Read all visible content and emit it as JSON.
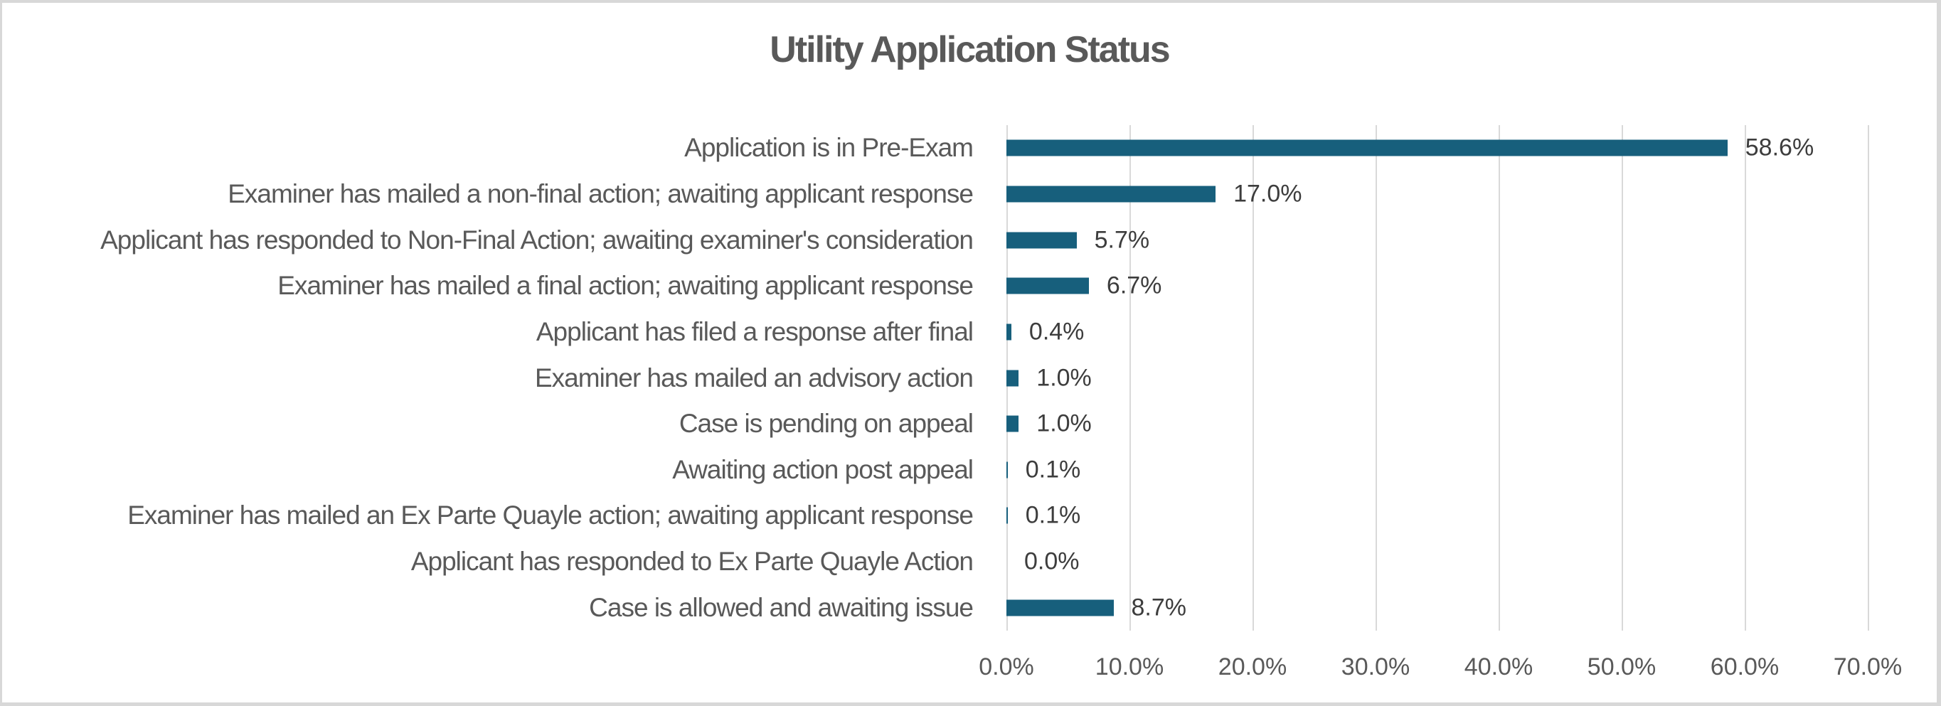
{
  "chart_data": {
    "type": "bar",
    "orientation": "horizontal",
    "title": "Utility Application Status",
    "categories": [
      "Application is in Pre-Exam",
      "Examiner has mailed a non-final action; awaiting applicant response",
      "Applicant has responded to Non-Final Action; awaiting examiner's consideration",
      "Examiner has mailed a final action; awaiting applicant response",
      "Applicant has filed a response after final",
      "Examiner has mailed an advisory action",
      "Case is pending on appeal",
      "Awaiting action post appeal",
      "Examiner has mailed an Ex Parte Quayle action; awaiting applicant response",
      "Applicant has responded to Ex Parte Quayle Action",
      "Case is allowed and awaiting issue"
    ],
    "values": [
      58.6,
      17.0,
      5.7,
      6.7,
      0.4,
      1.0,
      1.0,
      0.1,
      0.1,
      0.0,
      8.7
    ],
    "value_labels": [
      "58.6%",
      "17.0%",
      "5.7%",
      "6.7%",
      "0.4%",
      "1.0%",
      "1.0%",
      "0.1%",
      "0.1%",
      "0.0%",
      "8.7%"
    ],
    "xlabel": "",
    "ylabel": "",
    "xlim": [
      0,
      70
    ],
    "x_ticks": [
      "0.0%",
      "10.0%",
      "20.0%",
      "30.0%",
      "40.0%",
      "50.0%",
      "60.0%",
      "70.0%"
    ],
    "x_tick_values": [
      0,
      10,
      20,
      30,
      40,
      50,
      60,
      70
    ],
    "grid": "vertical-gridlines-on",
    "legend": "none",
    "colors": {
      "bar": "#175f7c",
      "gridline": "#d9d9d9",
      "title_text": "#595959",
      "category_text": "#595959",
      "data_label_text": "#3d3d3d",
      "tick_text": "#595959",
      "frame_border": "#d8d8d8",
      "background": "#ffffff"
    }
  }
}
